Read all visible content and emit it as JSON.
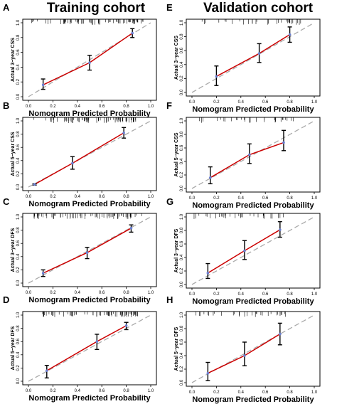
{
  "column_titles": [
    "Training cohort",
    "Validation cohort"
  ],
  "panels": [
    {
      "letter": "A",
      "ylabel": "Actual 3−year CSS",
      "xlabel": "Nomogram Predicted Probability"
    },
    {
      "letter": "B",
      "ylabel": "Actual 5−year CSS",
      "xlabel": "Nomogram Predicted Probability"
    },
    {
      "letter": "C",
      "ylabel": "Actual 3−year DFS",
      "xlabel": "Nomogram Predicted Probability"
    },
    {
      "letter": "D",
      "ylabel": "Actual 5−year DFS",
      "xlabel": "Nomogram Predicted Probability"
    },
    {
      "letter": "E",
      "ylabel": "Actual 3−year CSS",
      "xlabel": "Nomogram Predicted Probability"
    },
    {
      "letter": "F",
      "ylabel": "Actual 5−year CSS",
      "xlabel": "Nomogram Predicted Probability"
    },
    {
      "letter": "G",
      "ylabel": "Actual 3−year DFS",
      "xlabel": "Nomogram Predicted Probability"
    },
    {
      "letter": "H",
      "ylabel": "Actual 5−year DFS",
      "xlabel": "Nomogram Predicted Probability"
    }
  ],
  "colors": {
    "calibration": "#cc0000",
    "ideal": "#aaaaaa",
    "point": "#6a7fd1",
    "errorbar": "#000000"
  },
  "chart_data": [
    {
      "panel": "A",
      "type": "line",
      "xlim": [
        0,
        1
      ],
      "ylim": [
        0,
        1
      ],
      "xticks": [
        "0.0",
        "0.2",
        "0.4",
        "0.6",
        "0.8",
        "1.0"
      ],
      "yticks": [
        "0.0",
        "0.2",
        "0.4",
        "0.6",
        "0.8",
        "1.0"
      ],
      "x": [
        0.12,
        0.5,
        0.85
      ],
      "y": [
        0.16,
        0.46,
        0.86
      ],
      "lower": [
        0.1,
        0.36,
        0.8
      ],
      "upper": [
        0.24,
        0.56,
        0.92
      ]
    },
    {
      "panel": "B",
      "type": "line",
      "xlim": [
        0,
        1
      ],
      "ylim": [
        0,
        1
      ],
      "xticks": [
        "0.0",
        "0.2",
        "0.4",
        "0.6",
        "0.8",
        "1.0"
      ],
      "yticks": [
        "0.0",
        "0.2",
        "0.4",
        "0.6",
        "0.8",
        "1.0"
      ],
      "x": [
        0.05,
        0.36,
        0.78
      ],
      "y": [
        0.04,
        0.36,
        0.82
      ],
      "lower": [
        0.03,
        0.27,
        0.74
      ],
      "upper": [
        0.05,
        0.46,
        0.9
      ]
    },
    {
      "panel": "C",
      "type": "line",
      "xlim": [
        0,
        1
      ],
      "ylim": [
        0,
        1
      ],
      "xticks": [
        "0.0",
        "0.2",
        "0.4",
        "0.6",
        "0.8",
        "1.0"
      ],
      "yticks": [
        "0.0",
        "0.2",
        "0.4",
        "0.6",
        "0.8",
        "1.0"
      ],
      "x": [
        0.12,
        0.48,
        0.84
      ],
      "y": [
        0.15,
        0.46,
        0.83
      ],
      "lower": [
        0.1,
        0.37,
        0.77
      ],
      "upper": [
        0.2,
        0.54,
        0.88
      ]
    },
    {
      "panel": "D",
      "type": "line",
      "xlim": [
        0,
        1
      ],
      "ylim": [
        0,
        1
      ],
      "xticks": [
        "0.0",
        "0.2",
        "0.4",
        "0.6",
        "0.8",
        "1.0"
      ],
      "yticks": [
        "0.0",
        "0.2",
        "0.4",
        "0.6",
        "0.8",
        "1.0"
      ],
      "x": [
        0.15,
        0.56,
        0.8
      ],
      "y": [
        0.16,
        0.6,
        0.84
      ],
      "lower": [
        0.05,
        0.48,
        0.78
      ],
      "upper": [
        0.24,
        0.71,
        0.89
      ]
    },
    {
      "panel": "E",
      "type": "line",
      "xlim": [
        0,
        1
      ],
      "ylim": [
        0,
        1
      ],
      "xticks": [
        "0.0",
        "0.2",
        "0.4",
        "0.6",
        "0.8",
        "1.0"
      ],
      "yticks": [
        "0.0",
        "0.2",
        "0.4",
        "0.6",
        "0.8",
        "1.0"
      ],
      "x": [
        0.2,
        0.55,
        0.8
      ],
      "y": [
        0.23,
        0.56,
        0.83
      ],
      "lower": [
        0.1,
        0.43,
        0.72
      ],
      "upper": [
        0.38,
        0.7,
        0.94
      ]
    },
    {
      "panel": "F",
      "type": "line",
      "xlim": [
        0,
        1
      ],
      "ylim": [
        0,
        1
      ],
      "xticks": [
        "0.0",
        "0.2",
        "0.4",
        "0.6",
        "0.8",
        "1.0"
      ],
      "yticks": [
        "0.0",
        "0.2",
        "0.4",
        "0.6",
        "0.8",
        "1.0"
      ],
      "x": [
        0.15,
        0.47,
        0.75
      ],
      "y": [
        0.16,
        0.5,
        0.68
      ],
      "lower": [
        0.07,
        0.37,
        0.56
      ],
      "upper": [
        0.32,
        0.66,
        0.86
      ]
    },
    {
      "panel": "G",
      "type": "line",
      "xlim": [
        0,
        1
      ],
      "ylim": [
        0,
        1
      ],
      "xticks": [
        "0.0",
        "0.2",
        "0.4",
        "0.6",
        "0.8",
        "1.0"
      ],
      "yticks": [
        "0.0",
        "0.2",
        "0.4",
        "0.6",
        "0.8",
        "1.0"
      ],
      "x": [
        0.13,
        0.43,
        0.72
      ],
      "y": [
        0.17,
        0.5,
        0.81
      ],
      "lower": [
        0.09,
        0.37,
        0.7
      ],
      "upper": [
        0.31,
        0.65,
        0.93
      ]
    },
    {
      "panel": "H",
      "type": "line",
      "xlim": [
        0,
        1
      ],
      "ylim": [
        0,
        1
      ],
      "xticks": [
        "0.0",
        "0.2",
        "0.4",
        "0.6",
        "0.8",
        "1.0"
      ],
      "yticks": [
        "0.0",
        "0.2",
        "0.4",
        "0.6",
        "0.8",
        "1.0"
      ],
      "x": [
        0.13,
        0.43,
        0.72
      ],
      "y": [
        0.14,
        0.4,
        0.72
      ],
      "lower": [
        0.03,
        0.25,
        0.56
      ],
      "upper": [
        0.3,
        0.6,
        0.88
      ]
    }
  ]
}
